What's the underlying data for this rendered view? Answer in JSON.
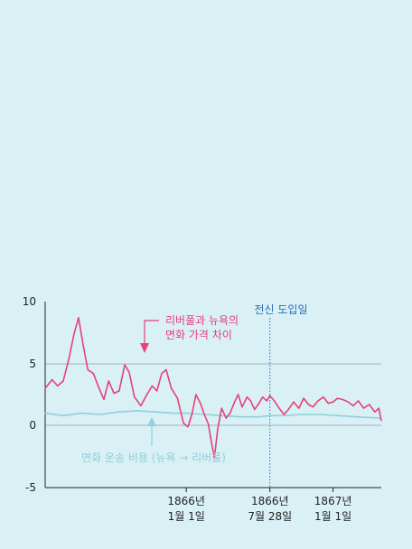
{
  "chart_data": {
    "type": "line",
    "y_ticks": [
      "10",
      "5",
      "0",
      "-5"
    ],
    "ylim": [
      -5,
      10
    ],
    "x_ticks": [
      {
        "date": "1866-01-01",
        "line1": "1866년",
        "line2": "1월 1일"
      },
      {
        "date": "1866-07-28",
        "line1": "1866년",
        "line2": "7월 28일"
      },
      {
        "date": "1867-01-01",
        "line1": "1867년",
        "line2": "1월 1일"
      }
    ],
    "xlim": [
      "1865-01-15",
      "1867-05-01"
    ],
    "grid": "horizontal at 0 and 5",
    "annotations": {
      "price_gap": {
        "line1": "리버풀과 뉴욕의",
        "line2": "면화 가격 차이"
      },
      "transport_cost": "면화 운송 비용 (뉴욕 → 리버풀)",
      "telegraph": "전신 도입일"
    },
    "telegraph_date": "1866-07-28",
    "series": [
      {
        "color": "#e5417a",
        "points": [
          [
            "1865-01-15",
            3.0
          ],
          [
            "1865-02-01",
            3.7
          ],
          [
            "1865-02-15",
            3.2
          ],
          [
            "1865-03-01",
            3.6
          ],
          [
            "1865-03-15",
            5.4
          ],
          [
            "1865-03-28",
            7.4
          ],
          [
            "1865-04-08",
            8.7
          ],
          [
            "1865-04-20",
            6.4
          ],
          [
            "1865-05-01",
            4.5
          ],
          [
            "1865-05-15",
            4.2
          ],
          [
            "1865-05-28",
            3.1
          ],
          [
            "1865-06-10",
            2.1
          ],
          [
            "1865-06-22",
            3.6
          ],
          [
            "1865-07-05",
            2.6
          ],
          [
            "1865-07-18",
            2.8
          ],
          [
            "1865-08-01",
            4.9
          ],
          [
            "1865-08-12",
            4.3
          ],
          [
            "1865-08-25",
            2.3
          ],
          [
            "1865-09-10",
            1.6
          ],
          [
            "1865-09-25",
            2.5
          ],
          [
            "1865-10-08",
            3.2
          ],
          [
            "1865-10-20",
            2.8
          ],
          [
            "1865-11-01",
            4.2
          ],
          [
            "1865-11-12",
            4.5
          ],
          [
            "1865-11-25",
            3.0
          ],
          [
            "1865-12-10",
            2.2
          ],
          [
            "1865-12-25",
            0.2
          ],
          [
            "1866-01-05",
            -0.1
          ],
          [
            "1866-01-15",
            0.9
          ],
          [
            "1866-01-25",
            2.5
          ],
          [
            "1866-02-05",
            1.8
          ],
          [
            "1866-02-15",
            0.9
          ],
          [
            "1866-02-25",
            0.1
          ],
          [
            "1866-03-05",
            -1.4
          ],
          [
            "1866-03-12",
            -2.6
          ],
          [
            "1866-03-20",
            -0.3
          ],
          [
            "1866-03-30",
            1.4
          ],
          [
            "1866-04-10",
            0.6
          ],
          [
            "1866-04-20",
            1.0
          ],
          [
            "1866-05-01",
            1.9
          ],
          [
            "1866-05-10",
            2.5
          ],
          [
            "1866-05-20",
            1.5
          ],
          [
            "1866-06-01",
            2.3
          ],
          [
            "1866-06-10",
            2.0
          ],
          [
            "1866-06-20",
            1.3
          ],
          [
            "1866-07-01",
            1.8
          ],
          [
            "1866-07-10",
            2.3
          ],
          [
            "1866-07-20",
            2.0
          ],
          [
            "1866-07-28",
            2.4
          ],
          [
            "1866-08-08",
            2.0
          ],
          [
            "1866-08-20",
            1.4
          ],
          [
            "1866-09-01",
            0.9
          ],
          [
            "1866-09-12",
            1.3
          ],
          [
            "1866-09-25",
            1.9
          ],
          [
            "1866-10-08",
            1.4
          ],
          [
            "1866-10-20",
            2.2
          ],
          [
            "1866-11-01",
            1.7
          ],
          [
            "1866-11-12",
            1.5
          ],
          [
            "1866-11-25",
            2.0
          ],
          [
            "1866-12-08",
            2.3
          ],
          [
            "1866-12-20",
            1.8
          ],
          [
            "1867-01-01",
            1.9
          ],
          [
            "1867-01-12",
            2.2
          ],
          [
            "1867-01-25",
            2.1
          ],
          [
            "1867-02-08",
            1.9
          ],
          [
            "1867-02-20",
            1.6
          ],
          [
            "1867-03-05",
            2.0
          ],
          [
            "1867-03-18",
            1.4
          ],
          [
            "1867-04-01",
            1.7
          ],
          [
            "1867-04-15",
            1.1
          ],
          [
            "1867-04-25",
            1.4
          ],
          [
            "1867-05-01",
            0.4
          ]
        ]
      },
      {
        "color": "#8fd0dc",
        "points": [
          [
            "1865-01-15",
            1.0
          ],
          [
            "1865-03-01",
            0.8
          ],
          [
            "1865-04-15",
            1.0
          ],
          [
            "1865-06-01",
            0.9
          ],
          [
            "1865-07-15",
            1.1
          ],
          [
            "1865-09-01",
            1.2
          ],
          [
            "1865-10-15",
            1.1
          ],
          [
            "1865-12-01",
            1.0
          ],
          [
            "1866-01-01",
            1.0
          ],
          [
            "1866-02-15",
            0.9
          ],
          [
            "1866-04-01",
            0.8
          ],
          [
            "1866-05-15",
            0.7
          ],
          [
            "1866-07-01",
            0.7
          ],
          [
            "1866-07-28",
            0.8
          ],
          [
            "1866-09-01",
            0.8
          ],
          [
            "1866-10-15",
            0.9
          ],
          [
            "1866-12-01",
            0.9
          ],
          [
            "1867-01-15",
            0.8
          ],
          [
            "1867-03-01",
            0.7
          ],
          [
            "1867-05-01",
            0.6
          ]
        ]
      }
    ]
  }
}
